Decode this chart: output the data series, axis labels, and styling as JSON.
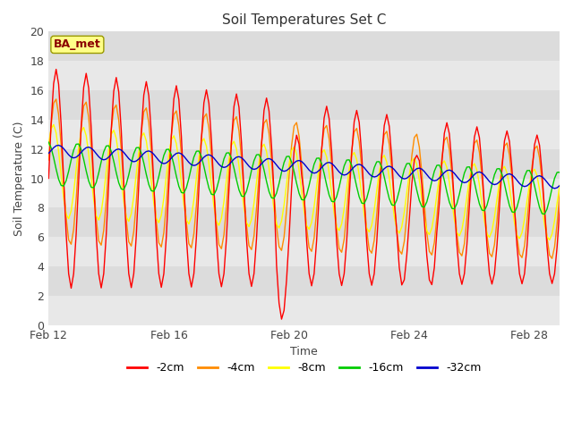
{
  "title": "Soil Temperatures Set C",
  "xlabel": "Time",
  "ylabel": "Soil Temperature (C)",
  "ylim": [
    0,
    20
  ],
  "yticks": [
    0,
    2,
    4,
    6,
    8,
    10,
    12,
    14,
    16,
    18,
    20
  ],
  "xtick_labels": [
    "Feb 12",
    "Feb 16",
    "Feb 20",
    "Feb 24",
    "Feb 28"
  ],
  "xtick_positions": [
    0,
    4,
    8,
    12,
    16
  ],
  "annotation_text": "BA_met",
  "annotation_box_color": "#FFFF88",
  "annotation_text_color": "#8B0000",
  "background_color": "#FFFFFF",
  "plot_bg_color": "#DCDCDC",
  "stripe_color": "#E8E8E8",
  "colors": {
    "-2cm": "#FF0000",
    "-4cm": "#FF8C00",
    "-8cm": "#FFFF00",
    "-16cm": "#00CC00",
    "-32cm": "#0000CD"
  },
  "legend_labels": [
    "-2cm",
    "-4cm",
    "-8cm",
    "-16cm",
    "-32cm"
  ]
}
